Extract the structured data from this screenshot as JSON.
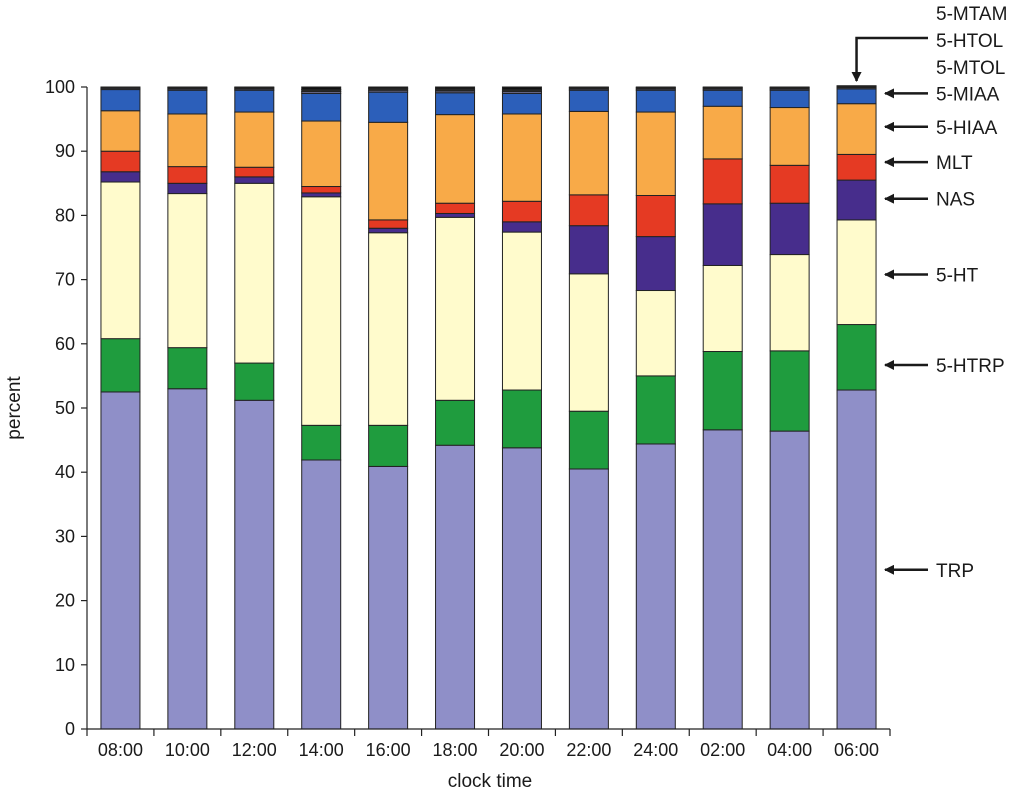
{
  "chart_data": {
    "type": "bar",
    "stacked": true,
    "xlabel": "clock time",
    "ylabel": "percent",
    "ylim": [
      0,
      100
    ],
    "yticks": [
      0,
      10,
      20,
      30,
      40,
      50,
      60,
      70,
      80,
      90,
      100
    ],
    "grid": false,
    "legend_placement": "right, arrows pointing to segments",
    "categories": [
      "08:00",
      "10:00",
      "12:00",
      "14:00",
      "16:00",
      "18:00",
      "20:00",
      "22:00",
      "24:00",
      "02:00",
      "04:00",
      "06:00"
    ],
    "series": [
      {
        "name": "TRP",
        "color": "#8f8fc8",
        "values": [
          52.5,
          53.0,
          51.2,
          41.9,
          40.9,
          44.2,
          43.8,
          40.5,
          44.4,
          46.6,
          46.4,
          52.8
        ]
      },
      {
        "name": "5-HTRP",
        "color": "#1f9c3e",
        "values": [
          8.3,
          6.4,
          5.8,
          5.4,
          6.4,
          7.0,
          9.0,
          9.0,
          10.6,
          12.2,
          12.5,
          10.2
        ]
      },
      {
        "name": "5-HT",
        "color": "#fffbcc",
        "values": [
          24.4,
          24.0,
          28.0,
          35.6,
          30.0,
          28.5,
          24.6,
          21.4,
          13.3,
          13.4,
          15.0,
          16.3
        ]
      },
      {
        "name": "NAS",
        "color": "#472d8c",
        "values": [
          1.6,
          1.6,
          1.0,
          0.6,
          0.7,
          0.6,
          1.6,
          7.5,
          8.4,
          9.6,
          8.0,
          6.2
        ]
      },
      {
        "name": "MLT",
        "color": "#e53a23",
        "values": [
          3.2,
          2.6,
          1.5,
          1.0,
          1.3,
          1.6,
          3.2,
          4.8,
          6.4,
          7.0,
          5.9,
          4.0
        ]
      },
      {
        "name": "5-HIAA",
        "color": "#f8aa48",
        "values": [
          6.3,
          8.2,
          8.6,
          10.2,
          15.2,
          13.8,
          13.6,
          13.0,
          13.0,
          8.2,
          9.0,
          7.9
        ]
      },
      {
        "name": "5-MIAA",
        "color": "#2c5fba",
        "values": [
          3.3,
          3.7,
          3.4,
          4.3,
          4.7,
          3.4,
          3.2,
          3.3,
          3.4,
          2.5,
          2.7,
          2.3
        ]
      },
      {
        "name": "5-MTOL",
        "color": "#6a6a8a",
        "values": [
          0.2,
          0.2,
          0.2,
          0.3,
          0.3,
          0.3,
          0.3,
          0.2,
          0.2,
          0.2,
          0.2,
          0.2
        ]
      },
      {
        "name": "5-HTOL",
        "color": "#2a2a2a",
        "values": [
          0.2,
          0.2,
          0.2,
          0.3,
          0.3,
          0.3,
          0.3,
          0.2,
          0.2,
          0.2,
          0.2,
          0.2
        ]
      },
      {
        "name": "5-MTAM",
        "color": "#111111",
        "values": [
          0.0,
          0.1,
          0.1,
          0.4,
          0.2,
          0.3,
          0.4,
          0.1,
          0.1,
          0.1,
          0.1,
          0.1
        ]
      }
    ],
    "legend_items": [
      {
        "label": "5-MTAM",
        "y": 100
      },
      {
        "label": "5-HTOL",
        "y": 100
      },
      {
        "label": "5-MTOL",
        "y": 100
      },
      {
        "label": "5-MIAA",
        "y": 99
      },
      {
        "label": "5-HIAA",
        "y": 93.8
      },
      {
        "label": "MLT",
        "y": 88.3
      },
      {
        "label": "NAS",
        "y": 82.6
      },
      {
        "label": "5-HT",
        "y": 70.8
      },
      {
        "label": "5-HTRP",
        "y": 56.7
      },
      {
        "label": "TRP",
        "y": 24.8
      }
    ]
  }
}
